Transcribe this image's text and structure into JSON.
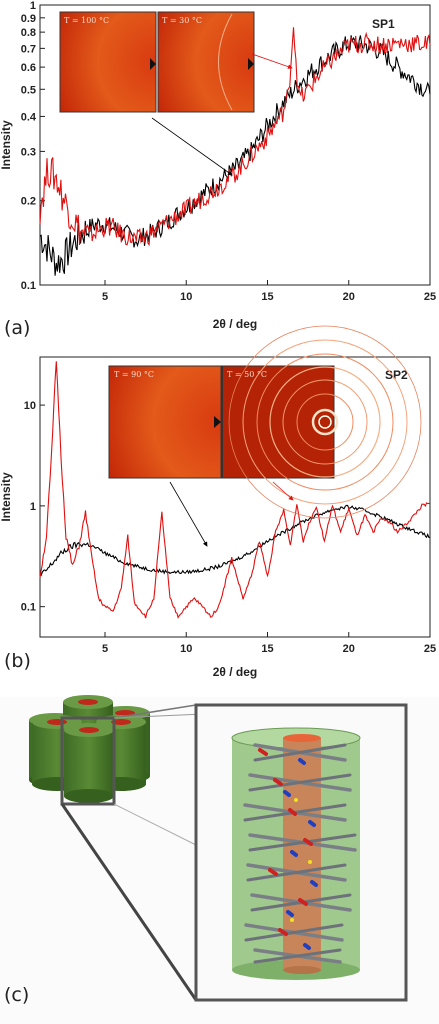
{
  "panel_labels": {
    "a": "(a)",
    "b": "(b)",
    "c": "(c)"
  },
  "colors": {
    "heated": "#000000",
    "cooled": "#e01010",
    "inset_arrow": "#e01010"
  },
  "chart_data": [
    {
      "type": "line",
      "label": "SP1",
      "xlabel": "2θ / deg",
      "ylabel": "Intensity",
      "xlim": [
        1,
        25
      ],
      "ylim": [
        0.1,
        1
      ],
      "yscale": "log",
      "x_ticks": [
        "5",
        "10",
        "15",
        "20",
        "25"
      ],
      "y_ticks": [
        "0.1",
        "0.2",
        "0.3",
        "0.4",
        "0.5",
        "0.6",
        "0.7",
        "0.8",
        "0.9",
        "1"
      ],
      "insets": [
        {
          "temperature": "T = 100 °C"
        },
        {
          "temperature": "T = 30 °C"
        }
      ],
      "series": [
        {
          "color": "#000000",
          "x": [
            1,
            1.5,
            2,
            2.5,
            3,
            3.5,
            4,
            4.5,
            5,
            5.5,
            6,
            6.5,
            7,
            7.5,
            8,
            8.5,
            9,
            9.5,
            10,
            11,
            12,
            13,
            14,
            15,
            16,
            17,
            18,
            19,
            20,
            21,
            22,
            23,
            24,
            25
          ],
          "y": [
            0.15,
            0.135,
            0.12,
            0.125,
            0.14,
            0.152,
            0.16,
            0.165,
            0.165,
            0.16,
            0.155,
            0.15,
            0.145,
            0.15,
            0.155,
            0.162,
            0.17,
            0.18,
            0.19,
            0.21,
            0.235,
            0.26,
            0.3,
            0.37,
            0.45,
            0.53,
            0.6,
            0.67,
            0.73,
            0.72,
            0.68,
            0.6,
            0.54,
            0.48
          ]
        },
        {
          "color": "#e01010",
          "x": [
            1,
            1.5,
            2,
            2.5,
            3,
            3.5,
            4,
            4.5,
            5,
            5.5,
            6,
            6.5,
            7,
            7.5,
            8,
            8.5,
            9,
            9.5,
            10,
            11,
            12,
            13,
            14,
            15,
            16,
            16.3,
            16.6,
            16.9,
            17.2,
            18,
            19,
            20,
            21,
            22,
            23,
            24,
            25
          ],
          "y": [
            0.19,
            0.26,
            0.24,
            0.2,
            0.175,
            0.155,
            0.15,
            0.155,
            0.162,
            0.16,
            0.152,
            0.148,
            0.145,
            0.148,
            0.155,
            0.163,
            0.17,
            0.178,
            0.185,
            0.205,
            0.225,
            0.25,
            0.29,
            0.34,
            0.42,
            0.48,
            0.86,
            0.48,
            0.47,
            0.55,
            0.64,
            0.72,
            0.73,
            0.72,
            0.73,
            0.73,
            0.72
          ]
        }
      ]
    },
    {
      "type": "line",
      "label": "SP2",
      "xlabel": "2θ / deg",
      "ylabel": "Intensity",
      "xlim": [
        1,
        25
      ],
      "ylim": [
        0.05,
        30
      ],
      "yscale": "log",
      "x_ticks": [
        "5",
        "10",
        "15",
        "20",
        "25"
      ],
      "y_ticks": [
        "0.1",
        "1",
        "10"
      ],
      "insets": [
        {
          "temperature": "T = 90 °C"
        },
        {
          "temperature": "T = 50 °C"
        }
      ],
      "series": [
        {
          "color": "#000000",
          "x": [
            1,
            1.5,
            2,
            2.5,
            3,
            3.5,
            4,
            4.5,
            5,
            5.5,
            6,
            7,
            8,
            9,
            10,
            11,
            12,
            13,
            14,
            15,
            16,
            17,
            18,
            19,
            20,
            21,
            22,
            23,
            24,
            25
          ],
          "y": [
            0.2,
            0.24,
            0.3,
            0.36,
            0.4,
            0.42,
            0.41,
            0.38,
            0.34,
            0.31,
            0.28,
            0.25,
            0.23,
            0.22,
            0.22,
            0.23,
            0.25,
            0.29,
            0.35,
            0.45,
            0.55,
            0.68,
            0.8,
            0.92,
            0.98,
            0.9,
            0.78,
            0.66,
            0.57,
            0.49
          ]
        },
        {
          "color": "#e01010",
          "x": [
            1,
            1.4,
            1.7,
            2,
            2.3,
            2.6,
            3,
            3.4,
            3.8,
            4.2,
            4.6,
            5,
            5.5,
            6,
            6.4,
            6.8,
            7.5,
            8,
            8.5,
            9,
            9.5,
            10,
            10.5,
            11,
            11.5,
            12,
            12.8,
            13.5,
            14,
            14.5,
            15,
            15.5,
            16,
            16.4,
            16.8,
            17.2,
            17.6,
            18,
            18.5,
            19,
            19.5,
            20,
            20.5,
            21,
            21.5,
            22,
            22.5,
            23,
            23.5,
            24,
            24.5,
            25
          ],
          "y": [
            0.2,
            0.5,
            3.0,
            28,
            3.0,
            0.5,
            0.25,
            0.4,
            0.85,
            0.3,
            0.12,
            0.1,
            0.09,
            0.15,
            0.5,
            0.11,
            0.08,
            0.12,
            0.85,
            0.12,
            0.08,
            0.1,
            0.12,
            0.1,
            0.08,
            0.1,
            0.3,
            0.12,
            0.2,
            0.45,
            0.2,
            0.55,
            0.9,
            0.4,
            1.05,
            0.45,
            0.7,
            1.0,
            0.45,
            1.0,
            0.55,
            0.95,
            0.5,
            0.8,
            0.55,
            0.75,
            0.7,
            0.55,
            0.65,
            0.8,
            1.0,
            1.05
          ]
        }
      ]
    }
  ]
}
